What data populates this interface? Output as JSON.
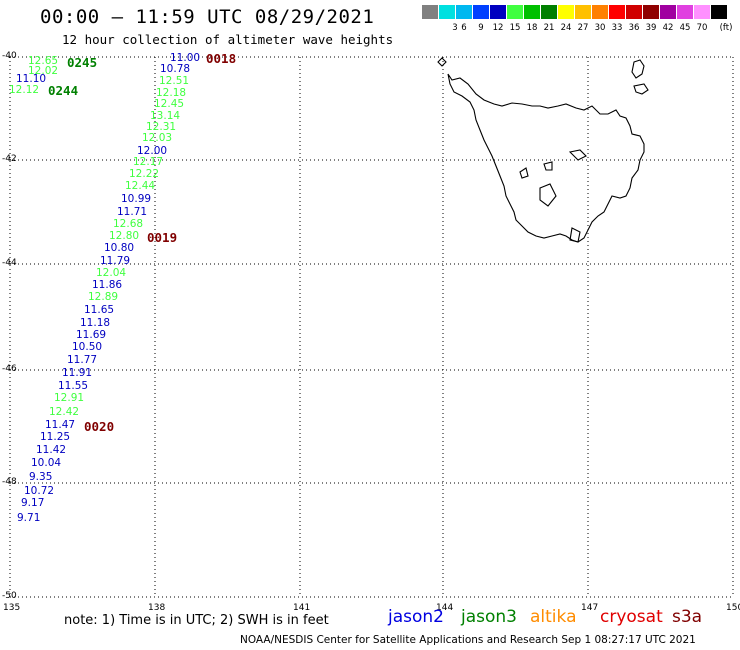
{
  "header": {
    "title": "00:00 – 11:59 UTC 08/29/2021",
    "subtitle": "12 hour collection of altimeter wave heights"
  },
  "color_scale": {
    "unit": "(ft)",
    "bins": [
      {
        "label": "",
        "color": "#808080"
      },
      {
        "label": "3",
        "color": "#00e0e0"
      },
      {
        "label": "6",
        "color": "#00b8f0"
      },
      {
        "label": "9",
        "color": "#0040ff"
      },
      {
        "label": "12",
        "color": "#0000c0"
      },
      {
        "label": "15",
        "color": "#40ff40"
      },
      {
        "label": "18",
        "color": "#00c000"
      },
      {
        "label": "21",
        "color": "#008000"
      },
      {
        "label": "24",
        "color": "#ffff00"
      },
      {
        "label": "27",
        "color": "#ffc000"
      },
      {
        "label": "30",
        "color": "#ff8000"
      },
      {
        "label": "33",
        "color": "#ff0000"
      },
      {
        "label": "36",
        "color": "#d00000"
      },
      {
        "label": "39",
        "color": "#900000"
      },
      {
        "label": "42",
        "color": "#a000a0"
      },
      {
        "label": "45",
        "color": "#e040e0"
      },
      {
        "label": "70",
        "color": "#ff90ff"
      },
      {
        "label": "",
        "color": "#000000"
      }
    ]
  },
  "map": {
    "lat_labels": [
      "-40",
      "-42",
      "-44",
      "-46",
      "-48",
      "-50"
    ],
    "lon_labels": [
      "135",
      "138",
      "141",
      "144",
      "147",
      "150"
    ]
  },
  "tracks": [
    {
      "time": "0245",
      "color": "#008000"
    },
    {
      "time": "0244",
      "color": "#008000"
    },
    {
      "time": "0018",
      "color": "#800000"
    },
    {
      "time": "0019",
      "color": "#800000"
    },
    {
      "time": "0020",
      "color": "#800000"
    }
  ],
  "swh_points": [
    {
      "value": "12.65",
      "color": "#40ff40"
    },
    {
      "value": "12.02",
      "color": "#40ff40"
    },
    {
      "value": "11.10",
      "color": "#0000c0"
    },
    {
      "value": "12.12",
      "color": "#40ff40"
    },
    {
      "value": "11.00",
      "color": "#0000c0"
    },
    {
      "value": "10.78",
      "color": "#0000c0"
    },
    {
      "value": "12.51",
      "color": "#40ff40"
    },
    {
      "value": "12.18",
      "color": "#40ff40"
    },
    {
      "value": "12.45",
      "color": "#40ff40"
    },
    {
      "value": "13.14",
      "color": "#40ff40"
    },
    {
      "value": "12.31",
      "color": "#40ff40"
    },
    {
      "value": "12.03",
      "color": "#40ff40"
    },
    {
      "value": "12.00",
      "color": "#0000c0"
    },
    {
      "value": "12.17",
      "color": "#40ff40"
    },
    {
      "value": "12.22",
      "color": "#40ff40"
    },
    {
      "value": "12.44",
      "color": "#40ff40"
    },
    {
      "value": "10.99",
      "color": "#0000c0"
    },
    {
      "value": "11.71",
      "color": "#0000c0"
    },
    {
      "value": "12.68",
      "color": "#40ff40"
    },
    {
      "value": "12.80",
      "color": "#40ff40"
    },
    {
      "value": "10.80",
      "color": "#0000c0"
    },
    {
      "value": "11.79",
      "color": "#0000c0"
    },
    {
      "value": "12.04",
      "color": "#40ff40"
    },
    {
      "value": "11.86",
      "color": "#0000c0"
    },
    {
      "value": "12.89",
      "color": "#40ff40"
    },
    {
      "value": "11.65",
      "color": "#0000c0"
    },
    {
      "value": "11.18",
      "color": "#0000c0"
    },
    {
      "value": "11.69",
      "color": "#0000c0"
    },
    {
      "value": "10.50",
      "color": "#0000c0"
    },
    {
      "value": "11.77",
      "color": "#0000c0"
    },
    {
      "value": "11.91",
      "color": "#0000c0"
    },
    {
      "value": "11.55",
      "color": "#0000c0"
    },
    {
      "value": "12.91",
      "color": "#40ff40"
    },
    {
      "value": "12.42",
      "color": "#40ff40"
    },
    {
      "value": "11.47",
      "color": "#0000c0"
    },
    {
      "value": "11.25",
      "color": "#0000c0"
    },
    {
      "value": "11.42",
      "color": "#0000c0"
    },
    {
      "value": "10.04",
      "color": "#0000c0"
    },
    {
      "value": "9.35",
      "color": "#0000c0"
    },
    {
      "value": "10.72",
      "color": "#0000c0"
    },
    {
      "value": "9.17",
      "color": "#0000c0"
    },
    {
      "value": "9.71",
      "color": "#0000c0"
    }
  ],
  "footer": {
    "note": "note:  1) Time is in UTC;  2) SWH is in feet",
    "satellites": [
      {
        "name": "jason2",
        "color": "#0000e0"
      },
      {
        "name": "jason3",
        "color": "#008000"
      },
      {
        "name": "altika",
        "color": "#ff8c00"
      },
      {
        "name": "cryosat",
        "color": "#e00000"
      },
      {
        "name": "s3a",
        "color": "#800000"
      }
    ],
    "credit": "NOAA/NESDIS Center for Satellite Applications and Research    Sep  1 08:27:17 UTC 2021"
  }
}
